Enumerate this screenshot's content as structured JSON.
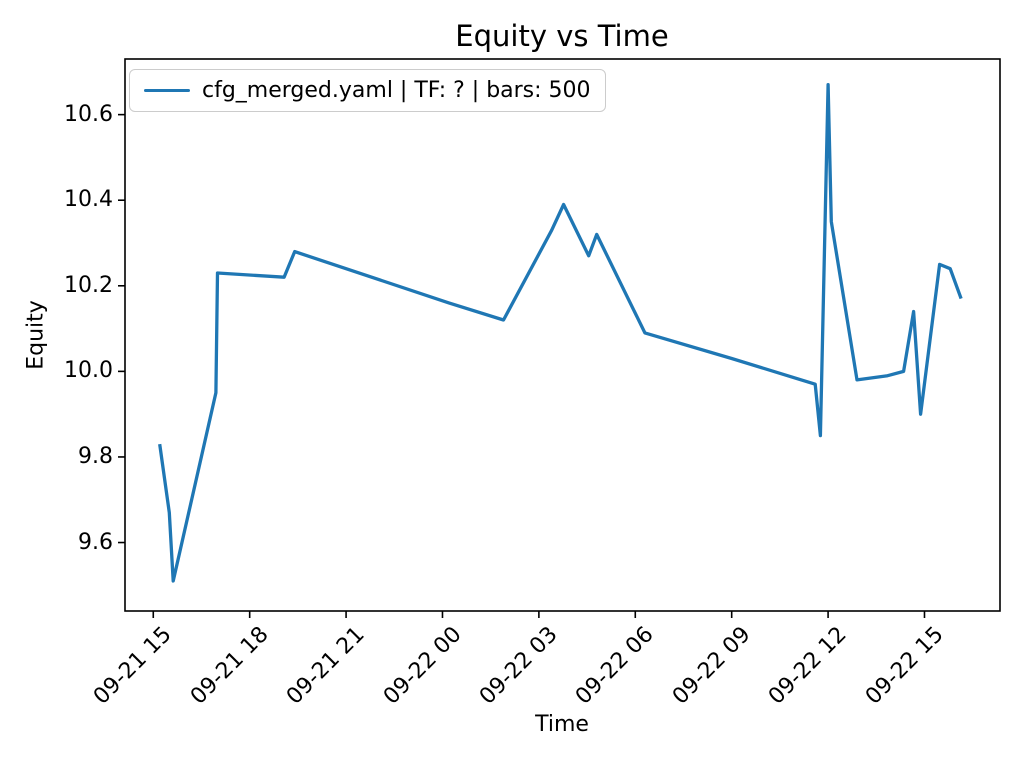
{
  "chart_data": {
    "type": "line",
    "title": "Equity vs Time",
    "xlabel": "Time",
    "ylabel": "Equity",
    "grid": false,
    "legend_position": "upper left",
    "x_tick_labels": [
      "09-21 15",
      "09-21 18",
      "09-21 21",
      "09-22 00",
      "09-22 03",
      "09-22 06",
      "09-22 09",
      "09-22 12",
      "09-22 15"
    ],
    "x_tick_hours": [
      0,
      3,
      6,
      9,
      12,
      15,
      18,
      21,
      24
    ],
    "y_ticks": [
      9.6,
      9.8,
      10.0,
      10.2,
      10.4,
      10.6
    ],
    "xlim_hours": [
      -0.88,
      26.35
    ],
    "ylim": [
      9.44,
      10.73
    ],
    "series": [
      {
        "name": "cfg_merged.yaml | TF: ? | bars: 500",
        "color": "#1f77b4",
        "points": [
          {
            "time": "09-21 15:12",
            "h": 0.2,
            "equity": 9.83
          },
          {
            "time": "09-21 15:30",
            "h": 0.5,
            "equity": 9.67
          },
          {
            "time": "09-21 15:37",
            "h": 0.62,
            "equity": 9.51
          },
          {
            "time": "09-21 16:57",
            "h": 1.95,
            "equity": 9.95
          },
          {
            "time": "09-21 17:00",
            "h": 2.0,
            "equity": 10.23
          },
          {
            "time": "09-21 19:04",
            "h": 4.07,
            "equity": 10.22
          },
          {
            "time": "09-21 19:24",
            "h": 4.4,
            "equity": 10.28
          },
          {
            "time": "09-22 00:12",
            "h": 9.2,
            "equity": 10.16
          },
          {
            "time": "09-22 01:54",
            "h": 10.9,
            "equity": 10.12
          },
          {
            "time": "09-22 03:24",
            "h": 12.4,
            "equity": 10.33
          },
          {
            "time": "09-22 03:46",
            "h": 12.77,
            "equity": 10.39
          },
          {
            "time": "09-22 04:33",
            "h": 13.55,
            "equity": 10.27
          },
          {
            "time": "09-22 04:48",
            "h": 13.8,
            "equity": 10.32
          },
          {
            "time": "09-22 06:18",
            "h": 15.3,
            "equity": 10.09
          },
          {
            "time": "09-22 09:00",
            "h": 18.0,
            "equity": 10.03
          },
          {
            "time": "09-22 11:36",
            "h": 20.6,
            "equity": 9.97
          },
          {
            "time": "09-22 11:46",
            "h": 20.76,
            "equity": 9.85
          },
          {
            "time": "09-22 12:00",
            "h": 21.0,
            "equity": 10.67
          },
          {
            "time": "09-22 12:06",
            "h": 21.1,
            "equity": 10.35
          },
          {
            "time": "09-22 12:54",
            "h": 21.9,
            "equity": 9.98
          },
          {
            "time": "09-22 13:51",
            "h": 22.85,
            "equity": 9.99
          },
          {
            "time": "09-22 14:21",
            "h": 23.35,
            "equity": 10.0
          },
          {
            "time": "09-22 14:40",
            "h": 23.66,
            "equity": 10.14
          },
          {
            "time": "09-22 14:53",
            "h": 23.88,
            "equity": 9.9
          },
          {
            "time": "09-22 15:28",
            "h": 24.47,
            "equity": 10.25
          },
          {
            "time": "09-22 15:48",
            "h": 24.8,
            "equity": 10.24
          },
          {
            "time": "09-22 16:08",
            "h": 25.14,
            "equity": 10.17
          }
        ]
      }
    ]
  },
  "colors": {
    "line": "#1f77b4",
    "legend_border": "#cccccc",
    "axis": "#000000",
    "background": "#ffffff"
  }
}
